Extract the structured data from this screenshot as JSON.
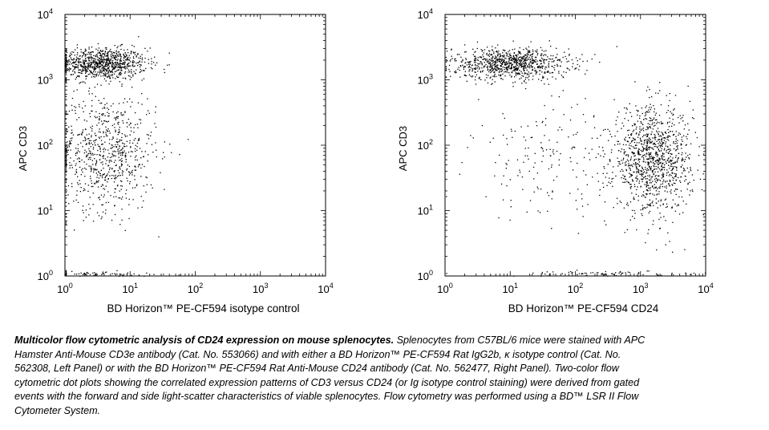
{
  "chart_data": [
    {
      "type": "scatter",
      "title": "",
      "xlabel": "BD Horizon™ PE-CF594 isotype control",
      "ylabel": "APC CD3",
      "xscale": "log",
      "yscale": "log",
      "xlim": [
        1,
        10000
      ],
      "ylim": [
        1,
        10000
      ],
      "x_ticks": [
        {
          "base": "10",
          "exp": "0"
        },
        {
          "base": "10",
          "exp": "1"
        },
        {
          "base": "10",
          "exp": "2"
        },
        {
          "base": "10",
          "exp": "3"
        },
        {
          "base": "10",
          "exp": "4"
        }
      ],
      "y_ticks": [
        {
          "base": "10",
          "exp": "0"
        },
        {
          "base": "10",
          "exp": "1"
        },
        {
          "base": "10",
          "exp": "2"
        },
        {
          "base": "10",
          "exp": "3"
        },
        {
          "base": "10",
          "exp": "4"
        }
      ],
      "populations": [
        {
          "label": "CD3+ isotype",
          "x_center": 3.5,
          "y_center": 1800,
          "x_spread_decades": 0.35,
          "y_spread_decades": 0.12,
          "n": 900
        },
        {
          "label": "CD3- isotype",
          "x_center": 4,
          "y_center": 80,
          "x_spread_decades": 0.4,
          "y_spread_decades": 0.45,
          "n": 800
        },
        {
          "label": "axis-piled events",
          "x_center": 3,
          "y_center": 1.1,
          "x_spread_decades": 0.5,
          "y_spread_decades": 0.02,
          "n": 60
        }
      ]
    },
    {
      "type": "scatter",
      "title": "",
      "xlabel": "BD Horizon™ PE-CF594 CD24",
      "ylabel": "APC CD3",
      "xscale": "log",
      "yscale": "log",
      "xlim": [
        1,
        10000
      ],
      "ylim": [
        1,
        10000
      ],
      "x_ticks": [
        {
          "base": "10",
          "exp": "0"
        },
        {
          "base": "10",
          "exp": "1"
        },
        {
          "base": "10",
          "exp": "2"
        },
        {
          "base": "10",
          "exp": "3"
        },
        {
          "base": "10",
          "exp": "4"
        }
      ],
      "y_ticks": [
        {
          "base": "10",
          "exp": "0"
        },
        {
          "base": "10",
          "exp": "1"
        },
        {
          "base": "10",
          "exp": "2"
        },
        {
          "base": "10",
          "exp": "3"
        },
        {
          "base": "10",
          "exp": "4"
        }
      ],
      "populations": [
        {
          "label": "CD3+ CD24 low",
          "x_center": 10,
          "y_center": 1800,
          "x_spread_decades": 0.45,
          "y_spread_decades": 0.12,
          "n": 900
        },
        {
          "label": "CD3- CD24 high",
          "x_center": 1500,
          "y_center": 60,
          "x_spread_decades": 0.3,
          "y_spread_decades": 0.4,
          "n": 1100
        },
        {
          "label": "sparse intermediate",
          "x_center": 40,
          "y_center": 60,
          "x_spread_decades": 0.6,
          "y_spread_decades": 0.45,
          "n": 180
        },
        {
          "label": "axis-piled events",
          "x_center": 300,
          "y_center": 1.1,
          "x_spread_decades": 0.8,
          "y_spread_decades": 0.02,
          "n": 80
        }
      ]
    }
  ],
  "caption": {
    "title": "Multicolor flow cytometric analysis of CD24 expression on mouse splenocytes.",
    "body": " Splenocytes from C57BL/6 mice were stained with APC Hamster Anti-Mouse CD3e antibody (Cat. No. 553066) and with either a BD Horizon™ PE-CF594 Rat IgG2b, κ isotype control (Cat. No. 562308, Left Panel) or with the BD Horizon™ PE-CF594 Rat Anti-Mouse CD24 antibody (Cat. No. 562477, Right Panel). Two-color flow cytometric dot plots showing the correlated expression patterns of CD3 versus CD24 (or Ig isotype control staining) were derived from gated events with the forward and side light-scatter characteristics of viable splenocytes. Flow cytometry was performed using a BD™ LSR II Flow Cytometer System."
  }
}
